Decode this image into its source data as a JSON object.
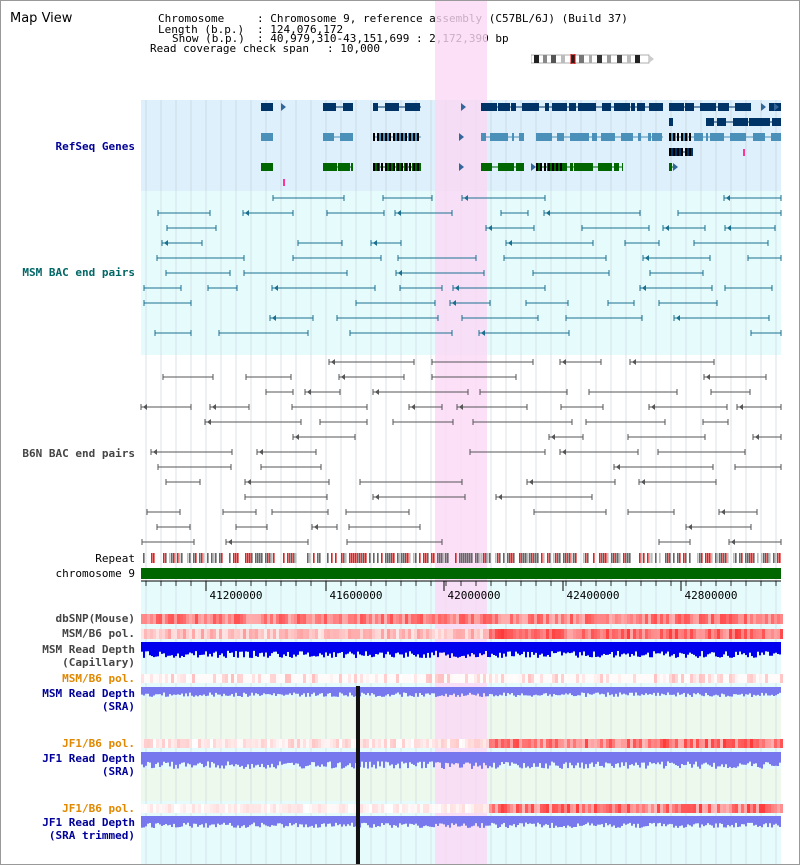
{
  "window": {
    "title": "Map View"
  },
  "info": {
    "chromosome_key": "Chromosome",
    "chromosome_val": ": Chromosome 9, reference assembly (C57BL/6J) (Build 37)",
    "length_key": "Length (b.p.)",
    "length_val": ": 124,076,172",
    "show_key": "Show (b.p.)",
    "show_val": ": 40,979,310-43,151,699 : 2,172,390 bp",
    "span_key": "Read coverage check span",
    "span_val": ": 10,000"
  },
  "tracks": {
    "refseq": "RefSeq Genes",
    "msm_bac": "MSM BAC end pairs",
    "b6n_bac": "B6N BAC end pairs",
    "repeat": "Repeat",
    "chromosome": "chromosome 9",
    "dbsnp": "dbSNP(Mouse)",
    "msm_b6_pol": "MSM/B6 pol.",
    "msm_depth_cap_1": "MSM Read Depth",
    "msm_depth_cap_2": "(Capillary)",
    "msm_b6_pol_2": "MSM/B6 pol.",
    "msm_depth_sra_1": "MSM Read Depth",
    "msm_depth_sra_2": "(SRA)",
    "jf1_b6_pol": "JF1/B6 pol.",
    "jf1_depth_sra_1": "JF1 Read Depth",
    "jf1_depth_sra_2": "(SRA)",
    "jf1_b6_pol_2": "JF1/B6 pol.",
    "jf1_depth_trim_1": "JF1 Read Depth",
    "jf1_depth_trim_2": "(SRA trimmed)"
  },
  "axis": {
    "ticks": [
      "41200000",
      "41600000",
      "42000000",
      "42400000",
      "42800000"
    ]
  },
  "colors": {
    "refseq_bg": "#ddf0fb",
    "bac_bg": "#e6fcfc",
    "highlight": "#fbd8f5",
    "gene_navy": "#003366",
    "gene_blue": "#4a90b8",
    "gene_green": "#006600",
    "bac_teal": "#1a6f8f",
    "bac_gray": "#555555",
    "chromosome": "#006600",
    "depth_blue": "#0000ee",
    "depth_light": "#7878ee",
    "depth_bg": "#eef9ee"
  }
}
